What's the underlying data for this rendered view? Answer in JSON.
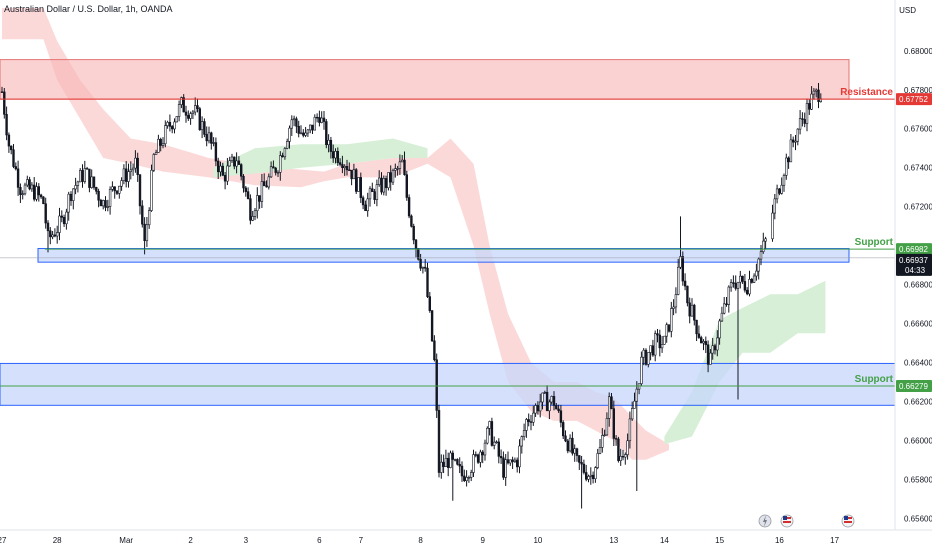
{
  "title": "Australian Dollar / U.S. Dollar, 1h, OANDA",
  "currency": "USD",
  "colors": {
    "up": "#131722",
    "down": "#131722",
    "resistance_zone": "#f7b4b4",
    "resistance_line": "#e53935",
    "support_zone": "#c7d7fb",
    "support_zone_border": "#2962ff",
    "support_line": "#43a047",
    "cloud_bear": "#fcd9d9",
    "cloud_bull": "#d6efd6",
    "current_price_bg": "#131722"
  },
  "chart_data": {
    "type": "candlestick",
    "title": "Australian Dollar / U.S. Dollar, 1h, OANDA",
    "ylim": [
      0.6555,
      0.6822
    ],
    "y_ticks": [
      "0.68000",
      "0.67800",
      "0.67600",
      "0.67400",
      "0.67200",
      "0.66800",
      "0.66600",
      "0.66400",
      "0.66200",
      "0.66000",
      "0.65800",
      "0.65600"
    ],
    "x_ticks": [
      {
        "label": "27",
        "i": 0
      },
      {
        "label": "28",
        "i": 24
      },
      {
        "label": "Mar",
        "i": 54
      },
      {
        "label": "2",
        "i": 82
      },
      {
        "label": "3",
        "i": 106
      },
      {
        "label": "6",
        "i": 138
      },
      {
        "label": "7",
        "i": 156
      },
      {
        "label": "8",
        "i": 182
      },
      {
        "label": "9",
        "i": 209
      },
      {
        "label": "10",
        "i": 233
      },
      {
        "label": "13",
        "i": 266
      },
      {
        "label": "14",
        "i": 288
      },
      {
        "label": "15",
        "i": 312
      },
      {
        "label": "16",
        "i": 338
      },
      {
        "label": "17",
        "i": 362
      }
    ],
    "resistance": {
      "label": "Resistance",
      "price": 0.67752,
      "price_label": "0.67752",
      "zone": [
        0.67752,
        0.67955
      ]
    },
    "support_upper": {
      "label": "Support",
      "price": 0.66982,
      "price_label": "0.66982",
      "zone": [
        0.66915,
        0.66985
      ]
    },
    "support_lower": {
      "label": "Support",
      "price": 0.66279,
      "price_label": "0.66279",
      "zone": [
        0.6618,
        0.66395
      ]
    },
    "current_price": {
      "price": 0.66937,
      "label": "0.66937",
      "countdown": "04:33"
    },
    "cloud": {
      "bear": [
        [
          0,
          0.6822,
          0.6806
        ],
        [
          18,
          0.6822,
          0.6806
        ],
        [
          24,
          0.6805,
          0.6785
        ],
        [
          34,
          0.6785,
          0.6765
        ],
        [
          44,
          0.677,
          0.6745
        ],
        [
          56,
          0.6755,
          0.6742
        ],
        [
          70,
          0.6752,
          0.6738
        ],
        [
          90,
          0.6745,
          0.6735
        ],
        [
          110,
          0.6741,
          0.6731
        ],
        [
          130,
          0.6739,
          0.673
        ],
        [
          140,
          0.6738,
          0.6733
        ],
        [
          150,
          0.6742,
          0.6735
        ],
        [
          170,
          0.6745,
          0.6735
        ],
        [
          185,
          0.6745,
          0.6742
        ],
        [
          195,
          0.6755,
          0.6735
        ],
        [
          205,
          0.6742,
          0.67
        ],
        [
          212,
          0.67,
          0.6665
        ],
        [
          220,
          0.6665,
          0.663
        ],
        [
          230,
          0.664,
          0.6615
        ],
        [
          240,
          0.663,
          0.661
        ],
        [
          250,
          0.663,
          0.661
        ],
        [
          258,
          0.6625,
          0.6605
        ],
        [
          266,
          0.6622,
          0.66
        ],
        [
          274,
          0.6612,
          0.659
        ],
        [
          280,
          0.6605,
          0.659
        ],
        [
          290,
          0.6598,
          0.6595
        ]
      ],
      "bull": [
        [
          92,
          0.6735,
          0.674
        ],
        [
          110,
          0.6737,
          0.675
        ],
        [
          130,
          0.674,
          0.6752
        ],
        [
          150,
          0.6742,
          0.6752
        ],
        [
          170,
          0.6745,
          0.6755
        ],
        [
          185,
          0.6745,
          0.675
        ],
        [
          288,
          0.6598,
          0.6602
        ],
        [
          300,
          0.6602,
          0.6625
        ],
        [
          312,
          0.663,
          0.6662
        ],
        [
          322,
          0.6645,
          0.6668
        ],
        [
          334,
          0.6645,
          0.6675
        ],
        [
          346,
          0.6655,
          0.6675
        ],
        [
          358,
          0.6655,
          0.6682
        ]
      ]
    },
    "candles": []
  }
}
